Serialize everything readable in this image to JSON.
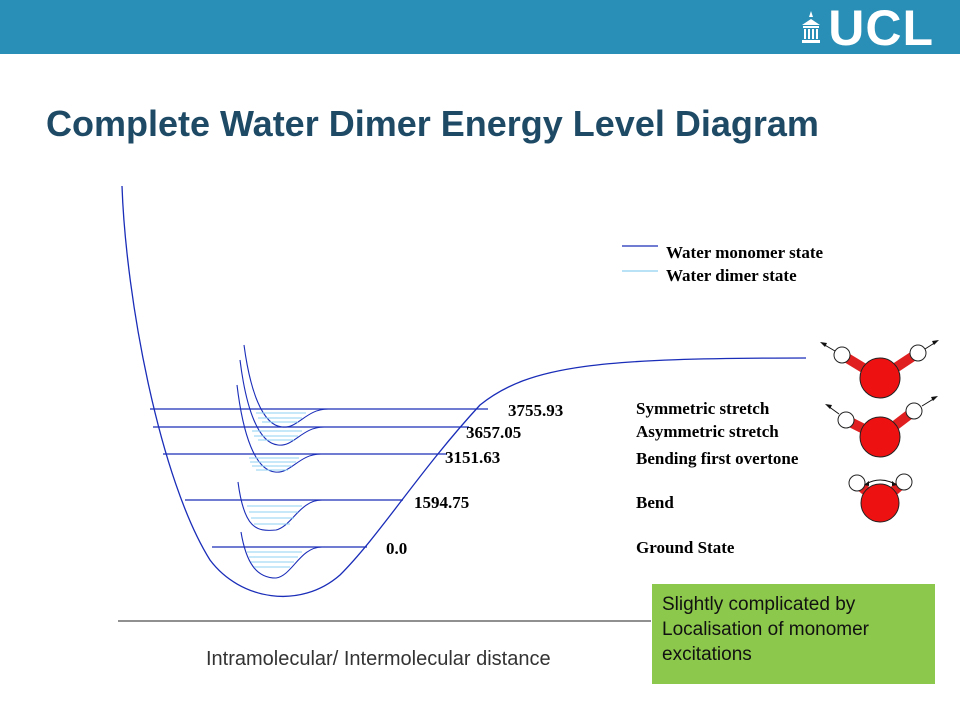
{
  "header": {
    "logo_text": "UCL",
    "accent_color": "#2a8fb6"
  },
  "title": "Complete Water Dimer Energy Level Diagram",
  "legend": {
    "monomer": {
      "label": "Water monomer state",
      "color": "#1a2db8"
    },
    "dimer": {
      "label": "Water dimer state",
      "color": "#8fd0f0"
    }
  },
  "levels": [
    {
      "value": "3755.93",
      "name": "Symmetric stretch"
    },
    {
      "value": "3657.05",
      "name": "Asymmetric stretch"
    },
    {
      "value": "3151.63",
      "name": "Bending first overtone"
    },
    {
      "value": "1594.75",
      "name": "Bend"
    },
    {
      "value": "0.0",
      "name": "Ground State"
    }
  ],
  "x_axis_label": "Intramolecular/ Intermolecular distance",
  "note": {
    "lines": [
      "Slightly complicated by",
      "Localisation of monomer",
      "excitations"
    ],
    "color": "#8cc84b"
  }
}
